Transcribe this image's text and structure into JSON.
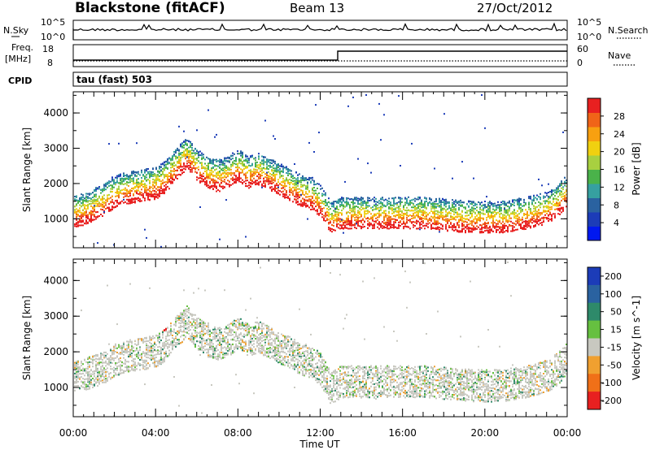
{
  "header": {
    "radar": "Blackstone (fitACF)",
    "beam": "Beam 13",
    "date": "27/Oct/2012"
  },
  "top_labels": {
    "nsky": "N.Sky",
    "nsky_hi": "10^5",
    "nsky_lo": "10^0",
    "nsearch": "N.Search",
    "nsearch_hi": "10^5",
    "nsearch_lo": "10^0",
    "freq_line1": "Freq.",
    "freq_line2": "[MHz]",
    "freq_hi": "18",
    "freq_lo": "8",
    "nave": "Nave",
    "nave_hi": "60",
    "nave_lo": "0",
    "cpid": "CPID",
    "cpid_text": "tau (fast) 503"
  },
  "chart_data": [
    {
      "type": "heatmap",
      "title": "",
      "xlabel": "Time UT",
      "ylabel": "Slant Range [km]",
      "xticks": [
        "00:00",
        "04:00",
        "08:00",
        "12:00",
        "16:00",
        "20:00",
        "00:00"
      ],
      "yticks": [
        1000,
        2000,
        3000,
        4000
      ],
      "xlim": [
        0,
        24
      ],
      "ylim": [
        180,
        4600
      ],
      "colorbar": {
        "label": "Power [dB]",
        "ticks": [
          4,
          8,
          12,
          16,
          20,
          24,
          28
        ],
        "colors": [
          "#0018f0",
          "#1c3cb8",
          "#2a62a0",
          "#36a0a0",
          "#4ab24a",
          "#a8d040",
          "#f0d010",
          "#f8a010",
          "#f06418",
          "#e82020"
        ]
      },
      "series": [
        {
          "x": [
            0,
            0.5,
            1,
            1.5,
            2,
            2.5,
            3,
            3.5,
            4,
            4.5,
            5,
            5.5,
            6,
            6.5,
            7,
            7.5,
            8,
            8.5,
            9,
            9.5,
            10,
            10.5,
            11,
            11.5,
            12,
            12.5,
            13,
            14,
            15,
            16,
            17,
            18,
            19,
            20,
            21,
            22,
            23,
            23.5,
            24
          ],
          "y": [
            1100,
            1150,
            1300,
            1450,
            1650,
            1750,
            1800,
            1850,
            1900,
            2100,
            2450,
            2750,
            2400,
            2200,
            2100,
            2200,
            2400,
            2200,
            2300,
            2150,
            2000,
            1850,
            1700,
            1600,
            1400,
            900,
            1050,
            1050,
            1050,
            1050,
            1050,
            1000,
            950,
            930,
            950,
            1050,
            1200,
            1400,
            1700
          ]
        }
      ]
    },
    {
      "type": "heatmap",
      "title": "",
      "xlabel": "Time UT",
      "ylabel": "Slant Range [km]",
      "xticks": [
        "00:00",
        "04:00",
        "08:00",
        "12:00",
        "16:00",
        "20:00",
        "00:00"
      ],
      "yticks": [
        1000,
        2000,
        3000,
        4000
      ],
      "xlim": [
        0,
        24
      ],
      "ylim": [
        180,
        4600
      ],
      "colorbar": {
        "label": "Velocity [m s^-1]",
        "ticks": [
          200,
          100,
          50,
          15,
          -15,
          -50,
          -100,
          -200
        ],
        "colors": [
          "#1c3cb8",
          "#2a62a0",
          "#2e8a6a",
          "#66c040",
          "#c8c8c0",
          "#f0a030",
          "#f07018",
          "#e82020"
        ]
      },
      "series": [
        {
          "name": "",
          "x": [
            0,
            0.5,
            1,
            1.5,
            2,
            2.5,
            3,
            3.5,
            4,
            4.5,
            5,
            5.5,
            6,
            6.5,
            7,
            7.5,
            8,
            8.5,
            9,
            9.5,
            10,
            10.5,
            11,
            11.5,
            12,
            12.5,
            13,
            14,
            15,
            16,
            17,
            18,
            19,
            20,
            21,
            22,
            23,
            23.5,
            24
          ],
          "y": [
            1200,
            1250,
            1350,
            1450,
            1650,
            1750,
            1800,
            1850,
            1900,
            2100,
            2450,
            2750,
            2400,
            2200,
            2100,
            2200,
            2400,
            2200,
            2300,
            2150,
            2000,
            1850,
            1700,
            1600,
            1400,
            850,
            1050,
            1050,
            1050,
            1050,
            1050,
            1000,
            950,
            930,
            950,
            1050,
            1200,
            1400,
            1700
          ]
        }
      ]
    }
  ]
}
